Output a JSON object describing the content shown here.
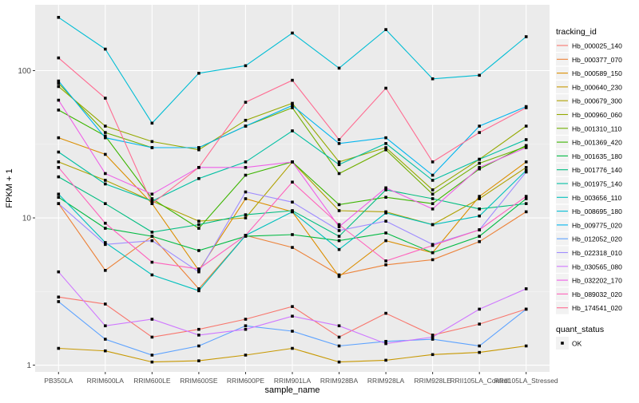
{
  "chart_data": {
    "type": "line",
    "title": "",
    "xlabel": "sample_name",
    "ylabel": "FPKM + 1",
    "y_scale": "log10",
    "ylim": [
      0.9,
      280
    ],
    "y_ticks": [
      1,
      10,
      100
    ],
    "y_tick_labels": [
      "1",
      "10",
      "100"
    ],
    "grid": true,
    "panel_background": "#ebebeb",
    "categories": [
      "PB350LA",
      "RRIM600LA",
      "RRIM600LE",
      "RRIM600SE",
      "RRIM600PE",
      "RRIM901LA",
      "RRIM928BA",
      "RRIM928LA",
      "RRIM928LE",
      "RRII105LA_Control",
      "RRII105LA_Stressed"
    ],
    "legend": {
      "position": "right",
      "color_title": "tracking_id",
      "shape_title": "quant_status",
      "shape_entries": [
        "OK"
      ]
    },
    "series": [
      {
        "name": "Hb_000025_140",
        "color": "#F8766D",
        "values": [
          2.9,
          2.6,
          1.55,
          1.75,
          2.05,
          2.5,
          1.55,
          2.25,
          1.6,
          1.9,
          2.4
        ]
      },
      {
        "name": "Hb_000377_070",
        "color": "#EC8239",
        "values": [
          12.5,
          4.4,
          7.5,
          3.3,
          7.6,
          6.3,
          4.1,
          4.8,
          5.2,
          6.9,
          11.0
        ]
      },
      {
        "name": "Hb_000589_150",
        "color": "#DB8E00",
        "values": [
          35,
          27,
          12.5,
          4.4,
          13.5,
          11.0,
          4.0,
          7.0,
          5.8,
          14.0,
          24.0
        ]
      },
      {
        "name": "Hb_000640_230",
        "color": "#C79800",
        "values": [
          1.3,
          1.25,
          1.05,
          1.07,
          1.17,
          1.3,
          1.05,
          1.08,
          1.18,
          1.22,
          1.35
        ]
      },
      {
        "name": "Hb_000679_300",
        "color": "#AFA100",
        "values": [
          24,
          18,
          13,
          9.5,
          10.0,
          24,
          11.2,
          11.0,
          9.0,
          13.5,
          22.0
        ]
      },
      {
        "name": "Hb_000960_060",
        "color": "#94A900",
        "values": [
          78,
          42,
          33,
          29,
          46,
          60,
          24,
          30,
          15.5,
          25,
          42
        ]
      },
      {
        "name": "Hb_001310_110",
        "color": "#72B000",
        "values": [
          82,
          38,
          30,
          30,
          42,
          56,
          20,
          29,
          14.5,
          23.5,
          30.5
        ]
      },
      {
        "name": "Hb_001369_420",
        "color": "#3CB500",
        "values": [
          54,
          36,
          13.5,
          8.5,
          19.5,
          24,
          12.3,
          13.8,
          12.5,
          21.5,
          31
        ]
      },
      {
        "name": "Hb_001635_180",
        "color": "#00BA42",
        "values": [
          13.8,
          8.5,
          7.5,
          6.0,
          7.5,
          7.7,
          7.0,
          7.9,
          5.8,
          7.5,
          13.5
        ]
      },
      {
        "name": "Hb_001776_140",
        "color": "#00BD80",
        "values": [
          19,
          12.5,
          8.0,
          9.0,
          10.5,
          11.2,
          7.5,
          15.5,
          13.5,
          11.5,
          12.5
        ]
      },
      {
        "name": "Hb_001975_140",
        "color": "#00BFA2",
        "values": [
          28,
          17,
          13.0,
          18.5,
          24,
          39,
          23,
          32,
          18.0,
          25,
          34
        ]
      },
      {
        "name": "Hb_003656_110",
        "color": "#00C0BD",
        "values": [
          14.5,
          6.8,
          4.1,
          3.2,
          7.6,
          11.0,
          6.1,
          10.8,
          9.0,
          10.3,
          21.0
        ]
      },
      {
        "name": "Hb_008695_180",
        "color": "#00BDD4",
        "values": [
          230,
          140,
          44,
          96,
          108,
          180,
          104,
          190,
          88,
          93,
          170
        ]
      },
      {
        "name": "Hb_009775_020",
        "color": "#00B5EF",
        "values": [
          85,
          35,
          30,
          30,
          42,
          58,
          32,
          35,
          19.5,
          42,
          57
        ]
      },
      {
        "name": "Hb_012052_020",
        "color": "#5CA2FF",
        "values": [
          2.7,
          1.5,
          1.17,
          1.35,
          1.85,
          1.7,
          1.35,
          1.45,
          1.5,
          1.35,
          2.4
        ]
      },
      {
        "name": "Hb_022318_010",
        "color": "#9F8CFF",
        "values": [
          12.5,
          6.6,
          7.0,
          4.3,
          15.0,
          12.8,
          8.2,
          9.5,
          6.6,
          8.3,
          20.5
        ]
      },
      {
        "name": "Hb_030565_080",
        "color": "#CF77FF",
        "values": [
          4.3,
          1.85,
          2.05,
          1.6,
          1.75,
          2.15,
          1.85,
          1.4,
          1.55,
          2.4,
          3.3
        ]
      },
      {
        "name": "Hb_032202_170",
        "color": "#EE60E7",
        "values": [
          63,
          20,
          14.5,
          22,
          22,
          24,
          8.7,
          16.0,
          11.5,
          22,
          30
        ]
      },
      {
        "name": "Hb_089032_020",
        "color": "#FF62BC",
        "values": [
          22,
          9.2,
          5.0,
          4.5,
          7.6,
          17.5,
          9.0,
          5.1,
          6.5,
          8.3,
          14.0
        ]
      },
      {
        "name": "Hb_174541_020",
        "color": "#FF6C92",
        "values": [
          122,
          65,
          12.5,
          22,
          61,
          86,
          34,
          76,
          24,
          38,
          56
        ]
      }
    ]
  }
}
